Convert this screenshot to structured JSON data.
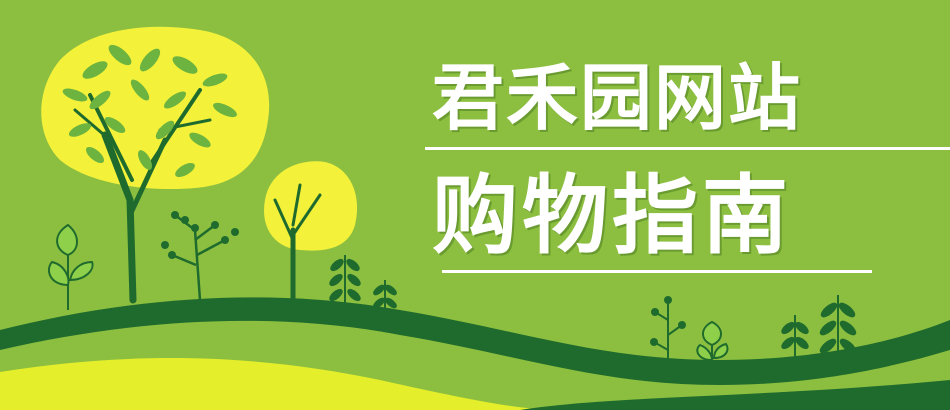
{
  "banner": {
    "title_line1": "君禾园网站",
    "title_line2": "购物指南"
  },
  "colors": {
    "background": "#8cbf3f",
    "dark_green": "#1f6b2e",
    "light_yellow": "#e4ee2a",
    "sun_yellow": "#f3f13a",
    "leaf_green": "#6db33f",
    "text": "#ffffff"
  }
}
